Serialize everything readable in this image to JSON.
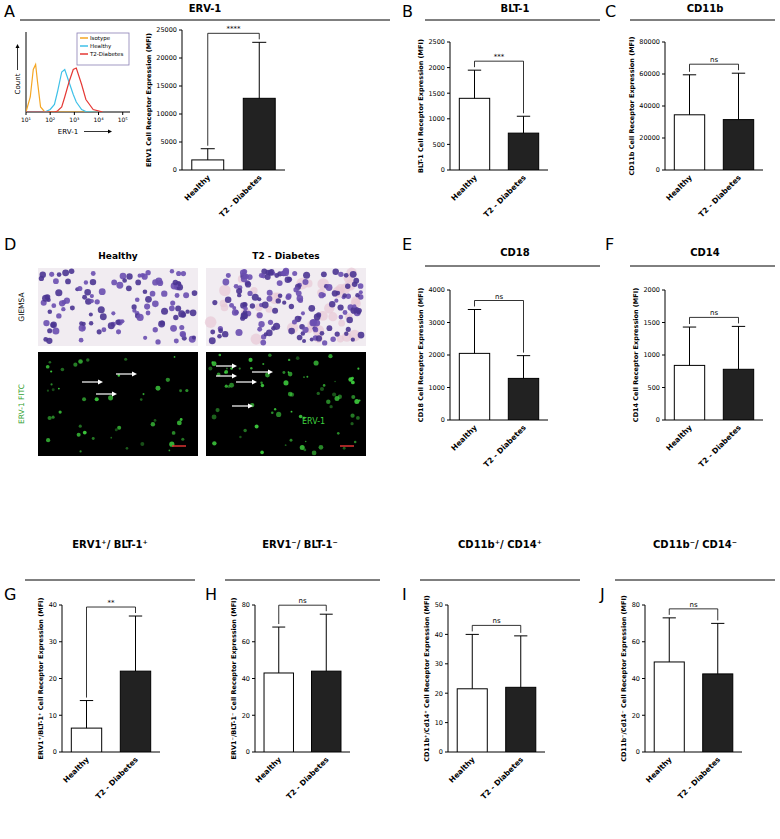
{
  "chart_data": [
    {
      "panel": "A",
      "type": "line",
      "title": "ERV-1",
      "x_label": "ERV-1",
      "y_label": "Count",
      "log": "x",
      "xlim": [
        10,
        200000
      ],
      "xticks": [
        {
          "value": 10,
          "label": "10¹"
        },
        {
          "value": 100,
          "label": "10²"
        },
        {
          "value": 1000,
          "label": "10³"
        },
        {
          "value": 10000,
          "label": "10⁴"
        },
        {
          "value": 100000,
          "label": "10⁵"
        }
      ],
      "ylim": [
        0,
        160
      ],
      "tick_labels": "x",
      "legend": "top-right",
      "x": [
        10,
        15,
        20,
        25,
        30,
        40,
        60,
        100,
        150,
        200,
        300,
        400,
        600,
        900,
        1200,
        2000,
        3000,
        6000,
        15000
      ],
      "series": [
        {
          "name": "Isotype",
          "color": "#f5a623",
          "values": [
            0,
            30,
            85,
            95,
            60,
            10,
            0,
            0,
            0,
            0,
            0,
            0,
            0,
            0,
            0,
            0,
            0,
            0,
            0
          ]
        },
        {
          "name": "Healthy",
          "color": "#3fc1e8",
          "values": [
            0,
            0,
            0,
            0,
            0,
            0,
            0,
            5,
            15,
            40,
            80,
            85,
            60,
            35,
            20,
            5,
            1,
            0,
            0
          ]
        },
        {
          "name": "T2-Diabetes",
          "color": "#e53935",
          "values": [
            0,
            0,
            0,
            0,
            0,
            0,
            0,
            0,
            0,
            2,
            10,
            30,
            60,
            85,
            88,
            55,
            25,
            5,
            0
          ]
        }
      ]
    },
    {
      "type": "bar",
      "y_label": "ERV1 Cell Receptor Expression (MFI)",
      "annotation": "****",
      "categories": [
        "Healthy",
        "T2 - Diabetes"
      ],
      "values": [
        1800,
        12800
      ],
      "errors": [
        2000,
        10000
      ],
      "colors": [
        "#ffffff",
        "#222222"
      ],
      "ylim": [
        0,
        25000
      ],
      "yticks": [
        0,
        5000,
        10000,
        15000,
        20000,
        25000
      ]
    },
    {
      "panel": "B",
      "type": "bar",
      "title": "BLT-1",
      "y_label": "BLT-1 Cell Receptor Expression (MFI)",
      "annotation": "***",
      "categories": [
        "Healthy",
        "T2 - Diabetes"
      ],
      "values": [
        1400,
        720
      ],
      "errors": [
        550,
        330
      ],
      "colors": [
        "#ffffff",
        "#222222"
      ],
      "ylim": [
        0,
        2500
      ],
      "yticks": [
        0,
        500,
        1000,
        1500,
        2000,
        2500
      ]
    },
    {
      "panel": "C",
      "type": "bar",
      "title": "CD11b",
      "y_label": "CD11b Cell Receptor Expression (MFI)",
      "annotation": "ns",
      "categories": [
        "Healthy",
        "T2 - Diabetes"
      ],
      "values": [
        34500,
        31500
      ],
      "errors": [
        25000,
        29000
      ],
      "colors": [
        "#ffffff",
        "#222222"
      ],
      "ylim": [
        0,
        80000
      ],
      "yticks": [
        0,
        20000,
        40000,
        60000,
        80000
      ]
    },
    {
      "panel": "D",
      "type": "image",
      "columns": [
        "Healthy",
        "T2 - Diabetes"
      ],
      "rows": [
        "GIEMSA",
        "ERV-1 FITC"
      ],
      "annotation": "ERV-1"
    },
    {
      "panel": "E",
      "type": "bar",
      "title": "CD18",
      "y_label": "CD18 Cell Receptor Expression (MFI)",
      "annotation": "ns",
      "categories": [
        "Healthy",
        "T2 - Diabetes"
      ],
      "values": [
        2050,
        1280
      ],
      "errors": [
        1350,
        700
      ],
      "colors": [
        "#ffffff",
        "#222222"
      ],
      "ylim": [
        0,
        4000
      ],
      "yticks": [
        0,
        1000,
        2000,
        3000,
        4000
      ]
    },
    {
      "panel": "F",
      "type": "bar",
      "title": "CD14",
      "y_label": "CD14 Cell Receptor Expression (MFI)",
      "annotation": "ns",
      "categories": [
        "Healthy",
        "T2 - Diabetes"
      ],
      "values": [
        840,
        780
      ],
      "errors": [
        590,
        660
      ],
      "colors": [
        "#ffffff",
        "#222222"
      ],
      "ylim": [
        0,
        2000
      ],
      "yticks": [
        0,
        500,
        1000,
        1500,
        2000
      ]
    },
    {
      "panel": "G",
      "type": "bar",
      "title": "ERV1⁺/ BLT-1⁺",
      "y_label": "ERV1⁺/BLT-1⁺ Cell Receptor Expression (MFI)",
      "annotation": "**",
      "categories": [
        "Healthy",
        "T2 - Diabetes"
      ],
      "values": [
        6.5,
        22
      ],
      "errors": [
        7.5,
        15
      ],
      "colors": [
        "#ffffff",
        "#222222"
      ],
      "ylim": [
        0,
        40
      ],
      "yticks": [
        0,
        10,
        20,
        30,
        40
      ]
    },
    {
      "panel": "H",
      "type": "bar",
      "title": "ERV1⁻/ BLT-1⁻",
      "y_label": "ERV1⁻/BLT-1⁻ Cell Receptor Expression (MFI)",
      "annotation": "ns",
      "categories": [
        "Healthy",
        "T2 - Diabetes"
      ],
      "values": [
        43,
        44
      ],
      "errors": [
        25,
        31
      ],
      "colors": [
        "#ffffff",
        "#222222"
      ],
      "ylim": [
        0,
        80
      ],
      "yticks": [
        0,
        20,
        40,
        60,
        80
      ]
    },
    {
      "panel": "I",
      "type": "bar",
      "title": "CD11b⁺/ CD14⁺",
      "y_label": "CD11b⁺/Cd14⁺ Cell Receptor Expression (MFI)",
      "annotation": "ns",
      "categories": [
        "Healthy",
        "T2 - Diabetes"
      ],
      "values": [
        21.5,
        22
      ],
      "errors": [
        18.5,
        17.5
      ],
      "colors": [
        "#ffffff",
        "#222222"
      ],
      "ylim": [
        0,
        50
      ],
      "yticks": [
        0,
        10,
        20,
        30,
        40,
        50
      ]
    },
    {
      "panel": "J",
      "type": "bar",
      "title": "CD11b⁻/ CD14⁻",
      "y_label": "CD11b⁻/Cd14⁻ Cell Receptor Expression (MFI)",
      "annotation": "ns",
      "categories": [
        "Healthy",
        "T2 - Diabetes"
      ],
      "values": [
        49,
        42.5
      ],
      "errors": [
        24,
        27.5
      ],
      "colors": [
        "#ffffff",
        "#222222"
      ],
      "ylim": [
        0,
        80
      ],
      "yticks": [
        0,
        20,
        40,
        60,
        80
      ]
    }
  ]
}
